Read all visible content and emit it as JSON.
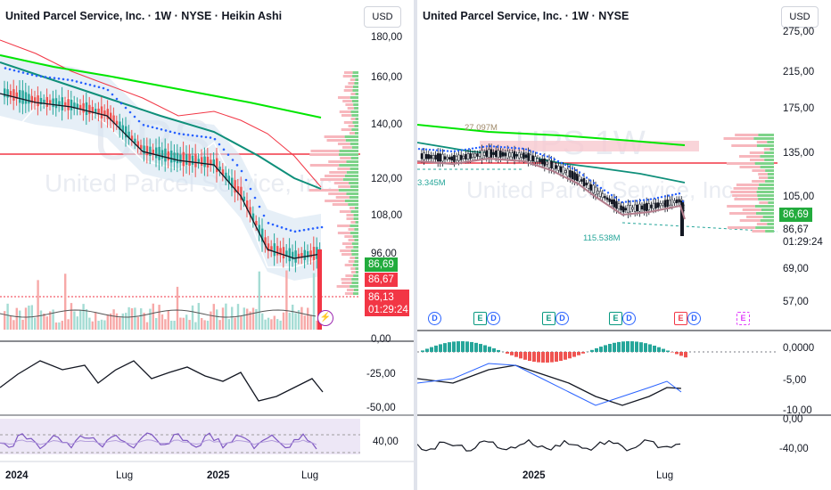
{
  "left_chart": {
    "title": "United Parcel Service, Inc. · 1W · NYSE · Heikin Ashi",
    "watermark_ticker": "UPS",
    "watermark_name": "United Parcel Service, Inc.",
    "currency": "USD",
    "price_axis": [
      "180,00",
      "160,00",
      "140,00",
      "120,00",
      "108,00",
      "96,00"
    ],
    "badges": {
      "green": "86,69",
      "red1": "86,67",
      "red2": "86,13",
      "time": "01:29:24"
    },
    "osc1_axis": [
      "0,00",
      "-25,00",
      "-50,00"
    ],
    "osc2_axis": [
      "40,00"
    ],
    "x_axis": [
      "2024",
      "Lug",
      "2025",
      "Lug"
    ],
    "icon_label": "⚡"
  },
  "right_chart": {
    "title": "United Parcel Service, Inc. · 1W · NYSE",
    "watermark_ticker": "UPS 1W",
    "watermark_name": "United Parcel Service, Inc.",
    "currency": "USD",
    "price_axis": [
      "275,00",
      "215,00",
      "175,00",
      "135,00",
      "105,00",
      "69,00",
      "57,00"
    ],
    "badges": {
      "green": "86,69",
      "price": "86,67",
      "time": "01:29:24"
    },
    "vol_labels": {
      "top": "27.097M",
      "left": "3.345M",
      "bottom": "115.538M"
    },
    "events": [
      "D",
      "E",
      "D",
      "E",
      "D",
      "E",
      "D",
      "E",
      "D",
      "E"
    ],
    "osc1_axis": [
      "0,0000",
      "-5,00",
      "-10,00"
    ],
    "osc2_axis": [
      "0,00",
      "-40,00"
    ],
    "x_axis": [
      "2025",
      "Lug"
    ]
  },
  "colors": {
    "up": "#26a69a",
    "down": "#ef5350",
    "ma_green": "#00e600",
    "ma_teal": "#0f8f7a",
    "blue": "#2962ff"
  }
}
